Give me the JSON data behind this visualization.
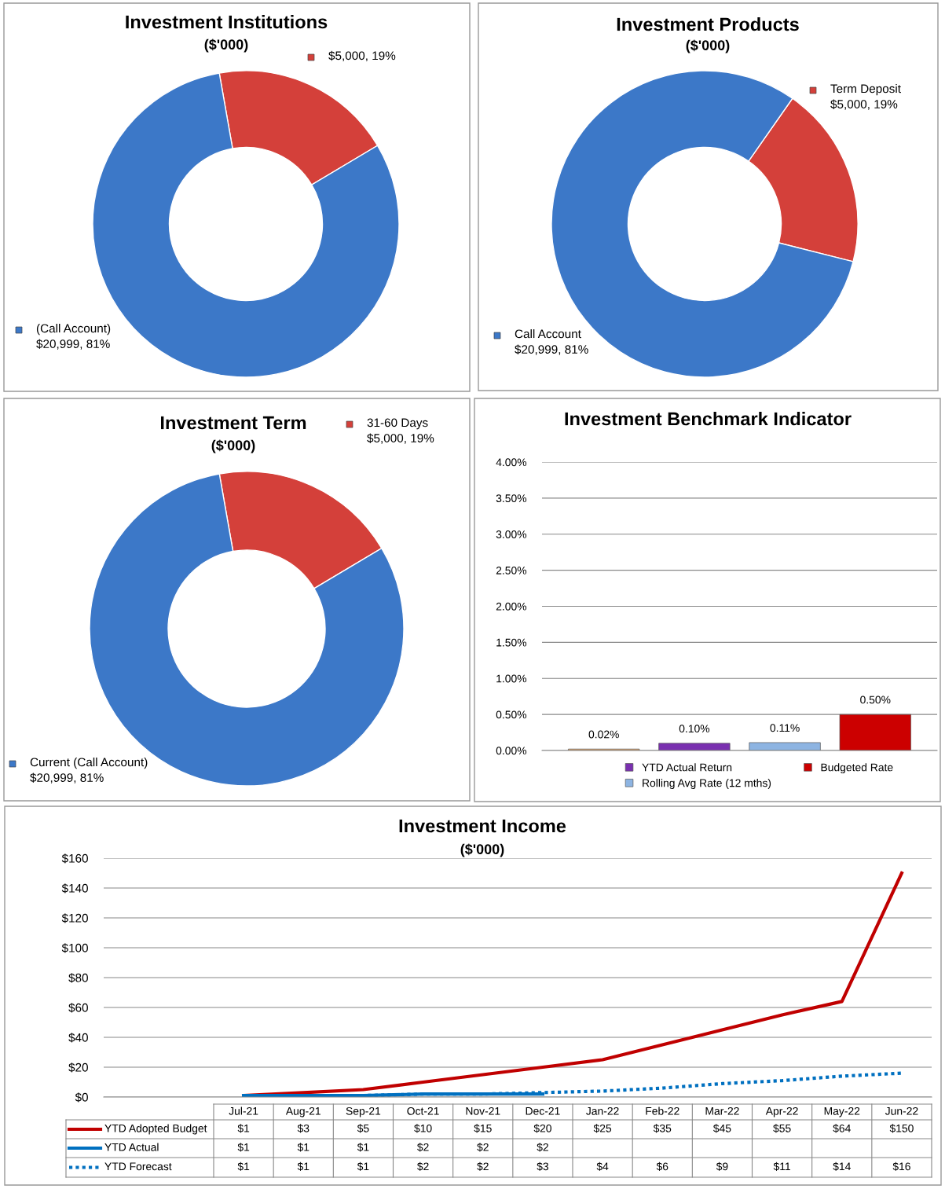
{
  "chart_data": [
    {
      "type": "donut",
      "title": "Investment Institutions",
      "subtitle": "($'000)",
      "categories": [
        "(Call Account)",
        null
      ],
      "values": [
        20999,
        5000
      ],
      "colors": [
        "#3c78c8",
        "#d4403a"
      ],
      "value_labels": [
        "$20,999, 81%",
        "$5,000, 19%"
      ],
      "legend": "bottom left"
    },
    {
      "type": "donut",
      "title": "Investment Products",
      "subtitle": "($'000)",
      "categories": [
        "Call Account",
        "Term Deposit"
      ],
      "values": [
        20999,
        5000
      ],
      "colors": [
        "#3c78c8",
        "#d4403a"
      ],
      "value_labels": [
        "$20,999, 81%",
        "$5,000, 19%"
      ],
      "legend": "right"
    },
    {
      "type": "donut",
      "title": "Investment Term",
      "subtitle": "($'000)",
      "categories": [
        "Current (Call Account)",
        "31-60 Days"
      ],
      "values": [
        20999,
        5000
      ],
      "colors": [
        "#3c78c8",
        "#d4403a"
      ],
      "value_labels": [
        "$20,999, 81%",
        "$5,000, 19%"
      ],
      "legend": "top left"
    },
    {
      "type": "bar",
      "title": "Investment Benchmark Indicator",
      "categories": [
        null
      ],
      "series": [
        {
          "color": "#f0a860",
          "values": [
            0.02
          ],
          "value_labels": [
            "0.02%"
          ]
        },
        {
          "name": "YTD Actual Return",
          "color": "#7a30b0",
          "values": [
            0.1
          ],
          "value_labels": [
            "0.10%"
          ]
        },
        {
          "name": "Rolling Avg Rate (12 mths)",
          "color": "#8db4e2",
          "values": [
            0.11
          ],
          "value_labels": [
            "0.11%"
          ]
        },
        {
          "name": "Budgeted Rate",
          "color": "#cc0000",
          "values": [
            0.5
          ],
          "value_labels": [
            "0.50%"
          ]
        }
      ],
      "ylim": [
        0,
        4
      ],
      "yticks": [
        {
          "value": 0,
          "label": "0.00%"
        },
        {
          "value": 0.5,
          "label": "0.50%"
        },
        {
          "value": 1,
          "label": "1.00%"
        },
        {
          "value": 1.5,
          "label": "1.50%"
        },
        {
          "value": 2,
          "label": "2.00%"
        },
        {
          "value": 2.5,
          "label": "2.50%"
        },
        {
          "value": 3,
          "label": "3.00%"
        },
        {
          "value": 3.5,
          "label": "3.50%"
        },
        {
          "value": 4,
          "label": "4.00%"
        }
      ],
      "grid": "y",
      "legend": "bottom"
    },
    {
      "type": "line",
      "title": "Investment Income",
      "subtitle": "($'000)",
      "categories": [
        "Jul-21",
        "Aug-21",
        "Sep-21",
        "Oct-21",
        "Nov-21",
        "Dec-21",
        "Jan-22",
        "Feb-22",
        "Mar-22",
        "Apr-22",
        "May-22",
        "Jun-22"
      ],
      "series": [
        {
          "name": "YTD Adopted Budget",
          "color": "#c00000",
          "values": [
            1,
            3,
            5,
            10,
            15,
            20,
            25,
            35,
            45,
            55,
            64,
            150
          ],
          "value_labels": [
            "$1",
            "$3",
            "$5",
            "$10",
            "$15",
            "$20",
            "$25",
            "$35",
            "$45",
            "$55",
            "$64",
            "$150"
          ]
        },
        {
          "name": "YTD Actual",
          "color": "#0070c0",
          "values": [
            1,
            1,
            1,
            2,
            2,
            2,
            null,
            null,
            null,
            null,
            null,
            null
          ],
          "value_labels": [
            "$1",
            "$1",
            "$1",
            "$2",
            "$2",
            "$2",
            null,
            null,
            null,
            null,
            null,
            null
          ]
        },
        {
          "name": "YTD Forecast",
          "color": "#0070c0",
          "line_style": "dotted",
          "values": [
            1,
            1,
            1,
            2,
            2,
            3,
            4,
            6,
            9,
            11,
            14,
            16
          ],
          "value_labels": [
            "$1",
            "$1",
            "$1",
            "$2",
            "$2",
            "$3",
            "$4",
            "$6",
            "$9",
            "$11",
            "$14",
            "$16"
          ]
        }
      ],
      "ylim": [
        0,
        160
      ],
      "yticks": [
        {
          "value": 0,
          "label": "$0"
        },
        {
          "value": 20,
          "label": "$20"
        },
        {
          "value": 40,
          "label": "$40"
        },
        {
          "value": 60,
          "label": "$60"
        },
        {
          "value": 80,
          "label": "$80"
        },
        {
          "value": 100,
          "label": "$100"
        },
        {
          "value": 120,
          "label": "$120"
        },
        {
          "value": 140,
          "label": "$140"
        },
        {
          "value": 160,
          "label": "$160"
        }
      ],
      "grid": "y",
      "legend": "bottom"
    }
  ]
}
